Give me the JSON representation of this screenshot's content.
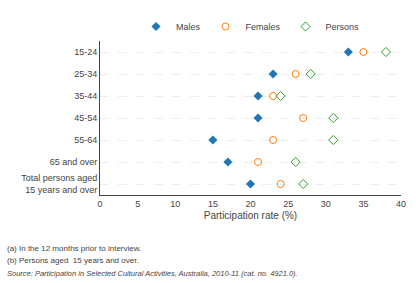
{
  "chart_data": {
    "type": "scatter",
    "orientation": "horizontal",
    "categories": [
      "15-24",
      "25-34",
      "35-44",
      "45-54",
      "55-64",
      "65 and over",
      "Total persons aged\n15 years and over"
    ],
    "series": [
      {
        "name": "Males",
        "marker": "diamond",
        "values": [
          33,
          23,
          21,
          21,
          15,
          17,
          20
        ]
      },
      {
        "name": "Females",
        "marker": "circle-open",
        "values": [
          35,
          26,
          23,
          27,
          23,
          21,
          24
        ]
      },
      {
        "name": "Persons",
        "marker": "diamond-open",
        "values": [
          38,
          28,
          24,
          31,
          31,
          26,
          27
        ]
      }
    ],
    "xlabel": "Participation rate (%)",
    "xlim": [
      0,
      40
    ],
    "xticks": [
      0,
      5,
      10,
      15,
      20,
      25,
      30,
      35,
      40
    ],
    "annotations": [
      "(a) In the 12 months prior to interview.",
      "(b) Persons aged  15 years and over.",
      "Source: Participation in Selected Cultural Activities, Australia, 2010-11 (cat. no. 4921.0)."
    ],
    "grid": true,
    "legend": "top"
  }
}
